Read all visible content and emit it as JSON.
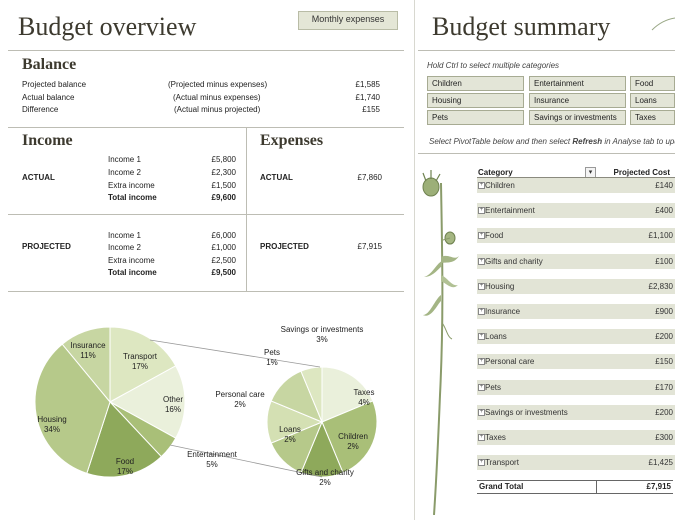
{
  "left": {
    "title": "Budget overview",
    "monthly_button": "Monthly expenses",
    "balance": {
      "heading": "Balance",
      "rows": [
        {
          "label": "Projected balance",
          "note": "(Projected minus expenses)",
          "value": "£1,585"
        },
        {
          "label": "Actual balance",
          "note": "(Actual minus expenses)",
          "value": "£1,740"
        },
        {
          "label": "Difference",
          "note": "(Actual minus projected)",
          "value": "£155"
        }
      ]
    },
    "income": {
      "heading": "Income",
      "actual_label": "ACTUAL",
      "projected_label": "PROJECTED",
      "actual_rows": [
        {
          "label": "Income 1",
          "value": "£5,800"
        },
        {
          "label": "Income 2",
          "value": "£2,300"
        },
        {
          "label": "Extra income",
          "value": "£1,500"
        }
      ],
      "actual_total": {
        "label": "Total income",
        "value": "£9,600"
      },
      "projected_rows": [
        {
          "label": "Income 1",
          "value": "£6,000"
        },
        {
          "label": "Income 2",
          "value": "£1,000"
        },
        {
          "label": "Extra income",
          "value": "£2,500"
        }
      ],
      "projected_total": {
        "label": "Total income",
        "value": "£9,500"
      }
    },
    "expenses": {
      "heading": "Expenses",
      "actual_label": "ACTUAL",
      "actual_value": "£7,860",
      "projected_label": "PROJECTED",
      "projected_value": "£7,915"
    }
  },
  "chart_data": {
    "type": "pie",
    "title": "",
    "main_pie": [
      {
        "label": "Insurance",
        "percent": 11
      },
      {
        "label": "Transport",
        "percent": 17
      },
      {
        "label": "Other",
        "percent": 16
      },
      {
        "label": "Entertainment",
        "percent": 5
      },
      {
        "label": "Food",
        "percent": 17
      },
      {
        "label": "Housing",
        "percent": 34
      }
    ],
    "other_breakdown": [
      {
        "label": "Savings or investments",
        "percent": 3
      },
      {
        "label": "Taxes",
        "percent": 4
      },
      {
        "label": "Children",
        "percent": 2
      },
      {
        "label": "Gifts and charity",
        "percent": 2
      },
      {
        "label": "Loans",
        "percent": 2
      },
      {
        "label": "Personal care",
        "percent": 2
      },
      {
        "label": "Pets",
        "percent": 1
      }
    ],
    "colors": [
      "#c7d6a2",
      "#dde7c1",
      "#eaf0db",
      "#a9bf78",
      "#8ea95b",
      "#b6c98a",
      "#d4e0b3"
    ]
  },
  "right": {
    "title": "Budget summary",
    "hint": "Hold Ctrl to select multiple categories",
    "slicers": [
      "Children",
      "Entertainment",
      "Food",
      "Housing",
      "Insurance",
      "Loans",
      "Pets",
      "Savings or investments",
      "Taxes"
    ],
    "pivot_note_pre": "Select PivotTable below and then select ",
    "pivot_note_bold": "Refresh",
    "pivot_note_post": " in Analyse tab to upd",
    "pivot": {
      "col_category": "Category",
      "col_cost": "Projected Cost",
      "rows": [
        {
          "label": "Children",
          "value": "£140"
        },
        {
          "label": "Entertainment",
          "value": "£400"
        },
        {
          "label": "Food",
          "value": "£1,100"
        },
        {
          "label": "Gifts and charity",
          "value": "£100"
        },
        {
          "label": "Housing",
          "value": "£2,830"
        },
        {
          "label": "Insurance",
          "value": "£900"
        },
        {
          "label": "Loans",
          "value": "£200"
        },
        {
          "label": "Personal care",
          "value": "£150"
        },
        {
          "label": "Pets",
          "value": "£170"
        },
        {
          "label": "Savings or investments",
          "value": "£200"
        },
        {
          "label": "Taxes",
          "value": "£300"
        },
        {
          "label": "Transport",
          "value": "£1,425"
        }
      ],
      "grand_total_label": "Grand Total",
      "grand_total_value": "£7,915"
    }
  }
}
